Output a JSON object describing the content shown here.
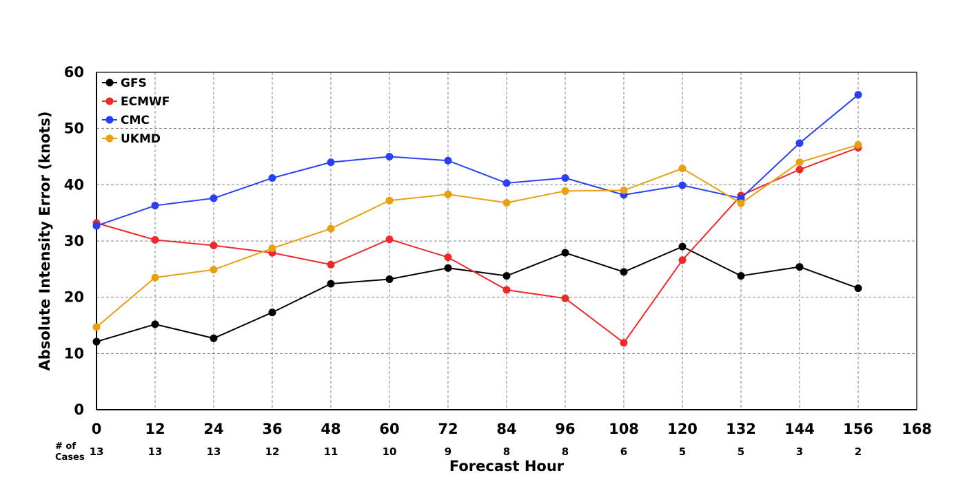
{
  "chart_data": {
    "type": "line",
    "title": "",
    "xlabel": "Forecast Hour",
    "ylabel": "Absolute Intensity Error (knots)",
    "xlim": [
      0,
      168
    ],
    "ylim": [
      0,
      60
    ],
    "x_ticks": [
      0,
      12,
      24,
      36,
      48,
      60,
      72,
      84,
      96,
      108,
      120,
      132,
      144,
      156,
      168
    ],
    "y_ticks": [
      0,
      10,
      20,
      30,
      40,
      50,
      60
    ],
    "grid": true,
    "legend_position": "top-left",
    "x": [
      0,
      12,
      24,
      36,
      48,
      60,
      72,
      84,
      96,
      108,
      120,
      132,
      144,
      156
    ],
    "series": [
      {
        "name": "GFS",
        "color": "#000000",
        "values": [
          12.1,
          15.2,
          12.7,
          17.3,
          22.4,
          23.2,
          25.2,
          23.8,
          27.9,
          24.5,
          29.0,
          23.8,
          25.4,
          21.6
        ]
      },
      {
        "name": "ECMWF",
        "color": "#f0282a",
        "values": [
          33.2,
          30.2,
          29.2,
          27.9,
          25.8,
          30.3,
          27.1,
          21.3,
          19.8,
          11.9,
          26.6,
          38.1,
          42.7,
          46.6
        ]
      },
      {
        "name": "CMC",
        "color": "#2a3ff5",
        "values": [
          32.7,
          36.3,
          37.6,
          41.2,
          44.0,
          45.0,
          44.3,
          40.3,
          41.2,
          38.2,
          39.9,
          37.6,
          47.4,
          56.0
        ]
      },
      {
        "name": "UKMD",
        "color": "#e8a010",
        "values": [
          14.7,
          23.5,
          24.9,
          28.7,
          32.2,
          37.2,
          38.3,
          36.8,
          38.9,
          39.0,
          42.9,
          36.7,
          44.0,
          47.1
        ]
      }
    ],
    "cases_label": "# of\nCases",
    "cases": [
      "13",
      "13",
      "13",
      "12",
      "11",
      "10",
      "9",
      "8",
      "8",
      "6",
      "5",
      "5",
      "3",
      "2"
    ]
  }
}
